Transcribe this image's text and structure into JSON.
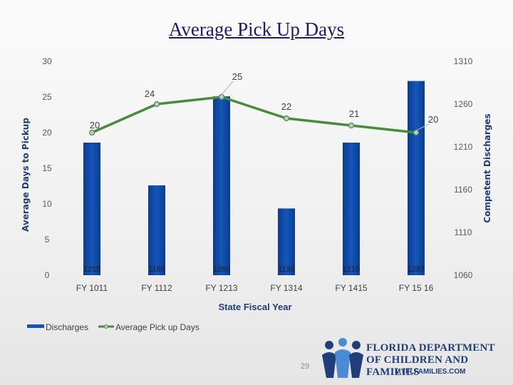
{
  "slide": {
    "title": "Average Pick Up Days",
    "page_number": "29",
    "logo": {
      "org_line1": "FLORIDA DEPARTMENT",
      "org_line2": "OF CHILDREN AND FAMILIES",
      "url": "MYFLFAMILIES.COM"
    }
  },
  "colors": {
    "bars": "#1456b8",
    "bars_dark": "#0b3d91",
    "line": "#4a8a3c",
    "marker_fill": "#b7cbe3",
    "axis_title": "#1f3f7a"
  },
  "chart_data": {
    "type": "bar",
    "categories": [
      "FY 1011",
      "FY 1112",
      "FY 1213",
      "FY 1314",
      "FY 1415",
      "FY 15 16"
    ],
    "series": [
      {
        "name": "Discharges",
        "type": "bar",
        "axis": "right",
        "values": [
          1215,
          1165,
          1269,
          1138,
          1215,
          1287
        ],
        "data_labels": [
          "1215",
          "1165",
          "1269",
          "1138",
          "1215",
          "1287"
        ]
      },
      {
        "name": "Average Pick up Days",
        "type": "line",
        "axis": "left",
        "values": [
          20,
          24,
          25,
          22,
          21,
          20
        ],
        "data_labels": [
          "20",
          "24",
          "25",
          "22",
          "21",
          "20"
        ]
      }
    ],
    "xlabel": "State Fiscal Year",
    "ylabel": "Average Days to Pickup",
    "y2label": "Competent Discharges",
    "ylim": [
      0,
      30
    ],
    "y2lim": [
      1060,
      1310
    ],
    "yticks": [
      "0",
      "5",
      "10",
      "15",
      "20",
      "25",
      "30"
    ],
    "y2ticks": [
      "1060",
      "1110",
      "1160",
      "1210",
      "1260",
      "1310"
    ],
    "grid": false,
    "legend_position": "bottom-left"
  }
}
